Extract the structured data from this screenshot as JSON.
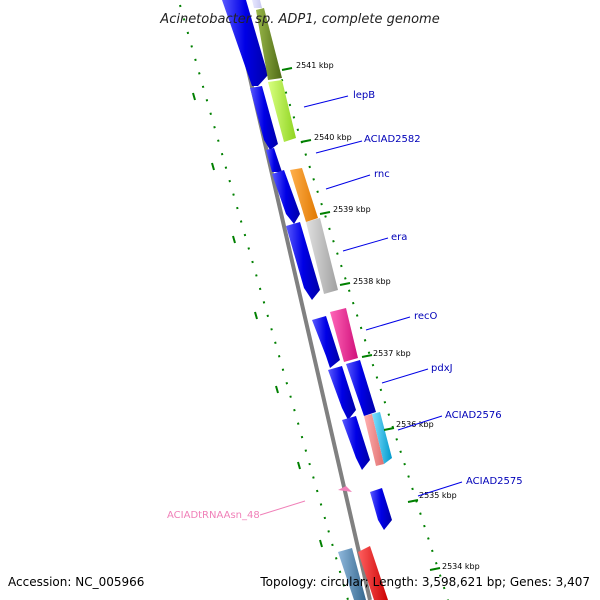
{
  "title": "Acinetobacter sp. ADP1, complete genome",
  "accession_text": "Accession: NC_005966",
  "topology_text": "Topology: circular; Length: 3,598,621 bp; Genes: 3,407",
  "ticks": [
    "2541 kbp",
    "2540 kbp",
    "2539 kbp",
    "2538 kbp",
    "2537 kbp",
    "2536 kbp",
    "2535 kbp",
    "2534 kbp"
  ],
  "gene_labels": [
    "lepB",
    "ACIAD2582",
    "rnc",
    "era",
    "recO",
    "pdxJ",
    "ACIAD2576",
    "ACIAD2575"
  ],
  "rna_label": "ACIADtRNAAsn_48",
  "colors": {
    "backbone": "#808080",
    "cds": "#0000e6",
    "olive": "#6b8e23",
    "lime": "#adff2f",
    "orange": "#ff8c00",
    "silver": "#bebebe",
    "pink": "#ff1493",
    "salmon": "#f08080",
    "cyan": "#00bfff",
    "steel": "#4682b4",
    "red": "#ff0000",
    "tick": "#008000",
    "label": "#0000b8",
    "rna": "#f080b8"
  }
}
